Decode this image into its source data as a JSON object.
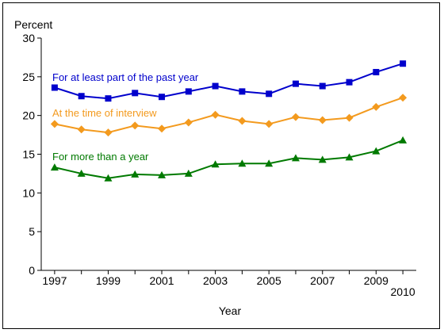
{
  "chart_data": {
    "type": "line",
    "title": "",
    "ylabel": "Percent",
    "xlabel": "Year",
    "ylim": [
      0,
      30
    ],
    "y_ticks": [
      0,
      5,
      10,
      15,
      20,
      25,
      30
    ],
    "x": [
      1997,
      1998,
      1999,
      2000,
      2001,
      2002,
      2003,
      2004,
      2005,
      2006,
      2007,
      2008,
      2009,
      2010
    ],
    "x_tick_labels": [
      "1997",
      "1999",
      "2001",
      "2003",
      "2005",
      "2007",
      "2009",
      "2010"
    ],
    "grid": false,
    "series": [
      {
        "name": "For at least part of the past year",
        "color": "#0000cc",
        "marker": "square",
        "values": [
          23.6,
          22.5,
          22.2,
          22.9,
          22.4,
          23.1,
          23.8,
          23.1,
          22.8,
          24.1,
          23.8,
          24.3,
          25.6,
          26.7
        ]
      },
      {
        "name": "At the time of interview",
        "color": "#f39a1e",
        "marker": "diamond",
        "values": [
          18.9,
          18.2,
          17.8,
          18.7,
          18.3,
          19.1,
          20.1,
          19.3,
          18.9,
          19.8,
          19.4,
          19.7,
          21.1,
          22.3
        ]
      },
      {
        "name": "For more than a year",
        "color": "#007a00",
        "marker": "triangle",
        "values": [
          13.3,
          12.5,
          11.9,
          12.4,
          12.3,
          12.5,
          13.7,
          13.8,
          13.8,
          14.5,
          14.3,
          14.6,
          15.4,
          16.8
        ]
      }
    ]
  }
}
